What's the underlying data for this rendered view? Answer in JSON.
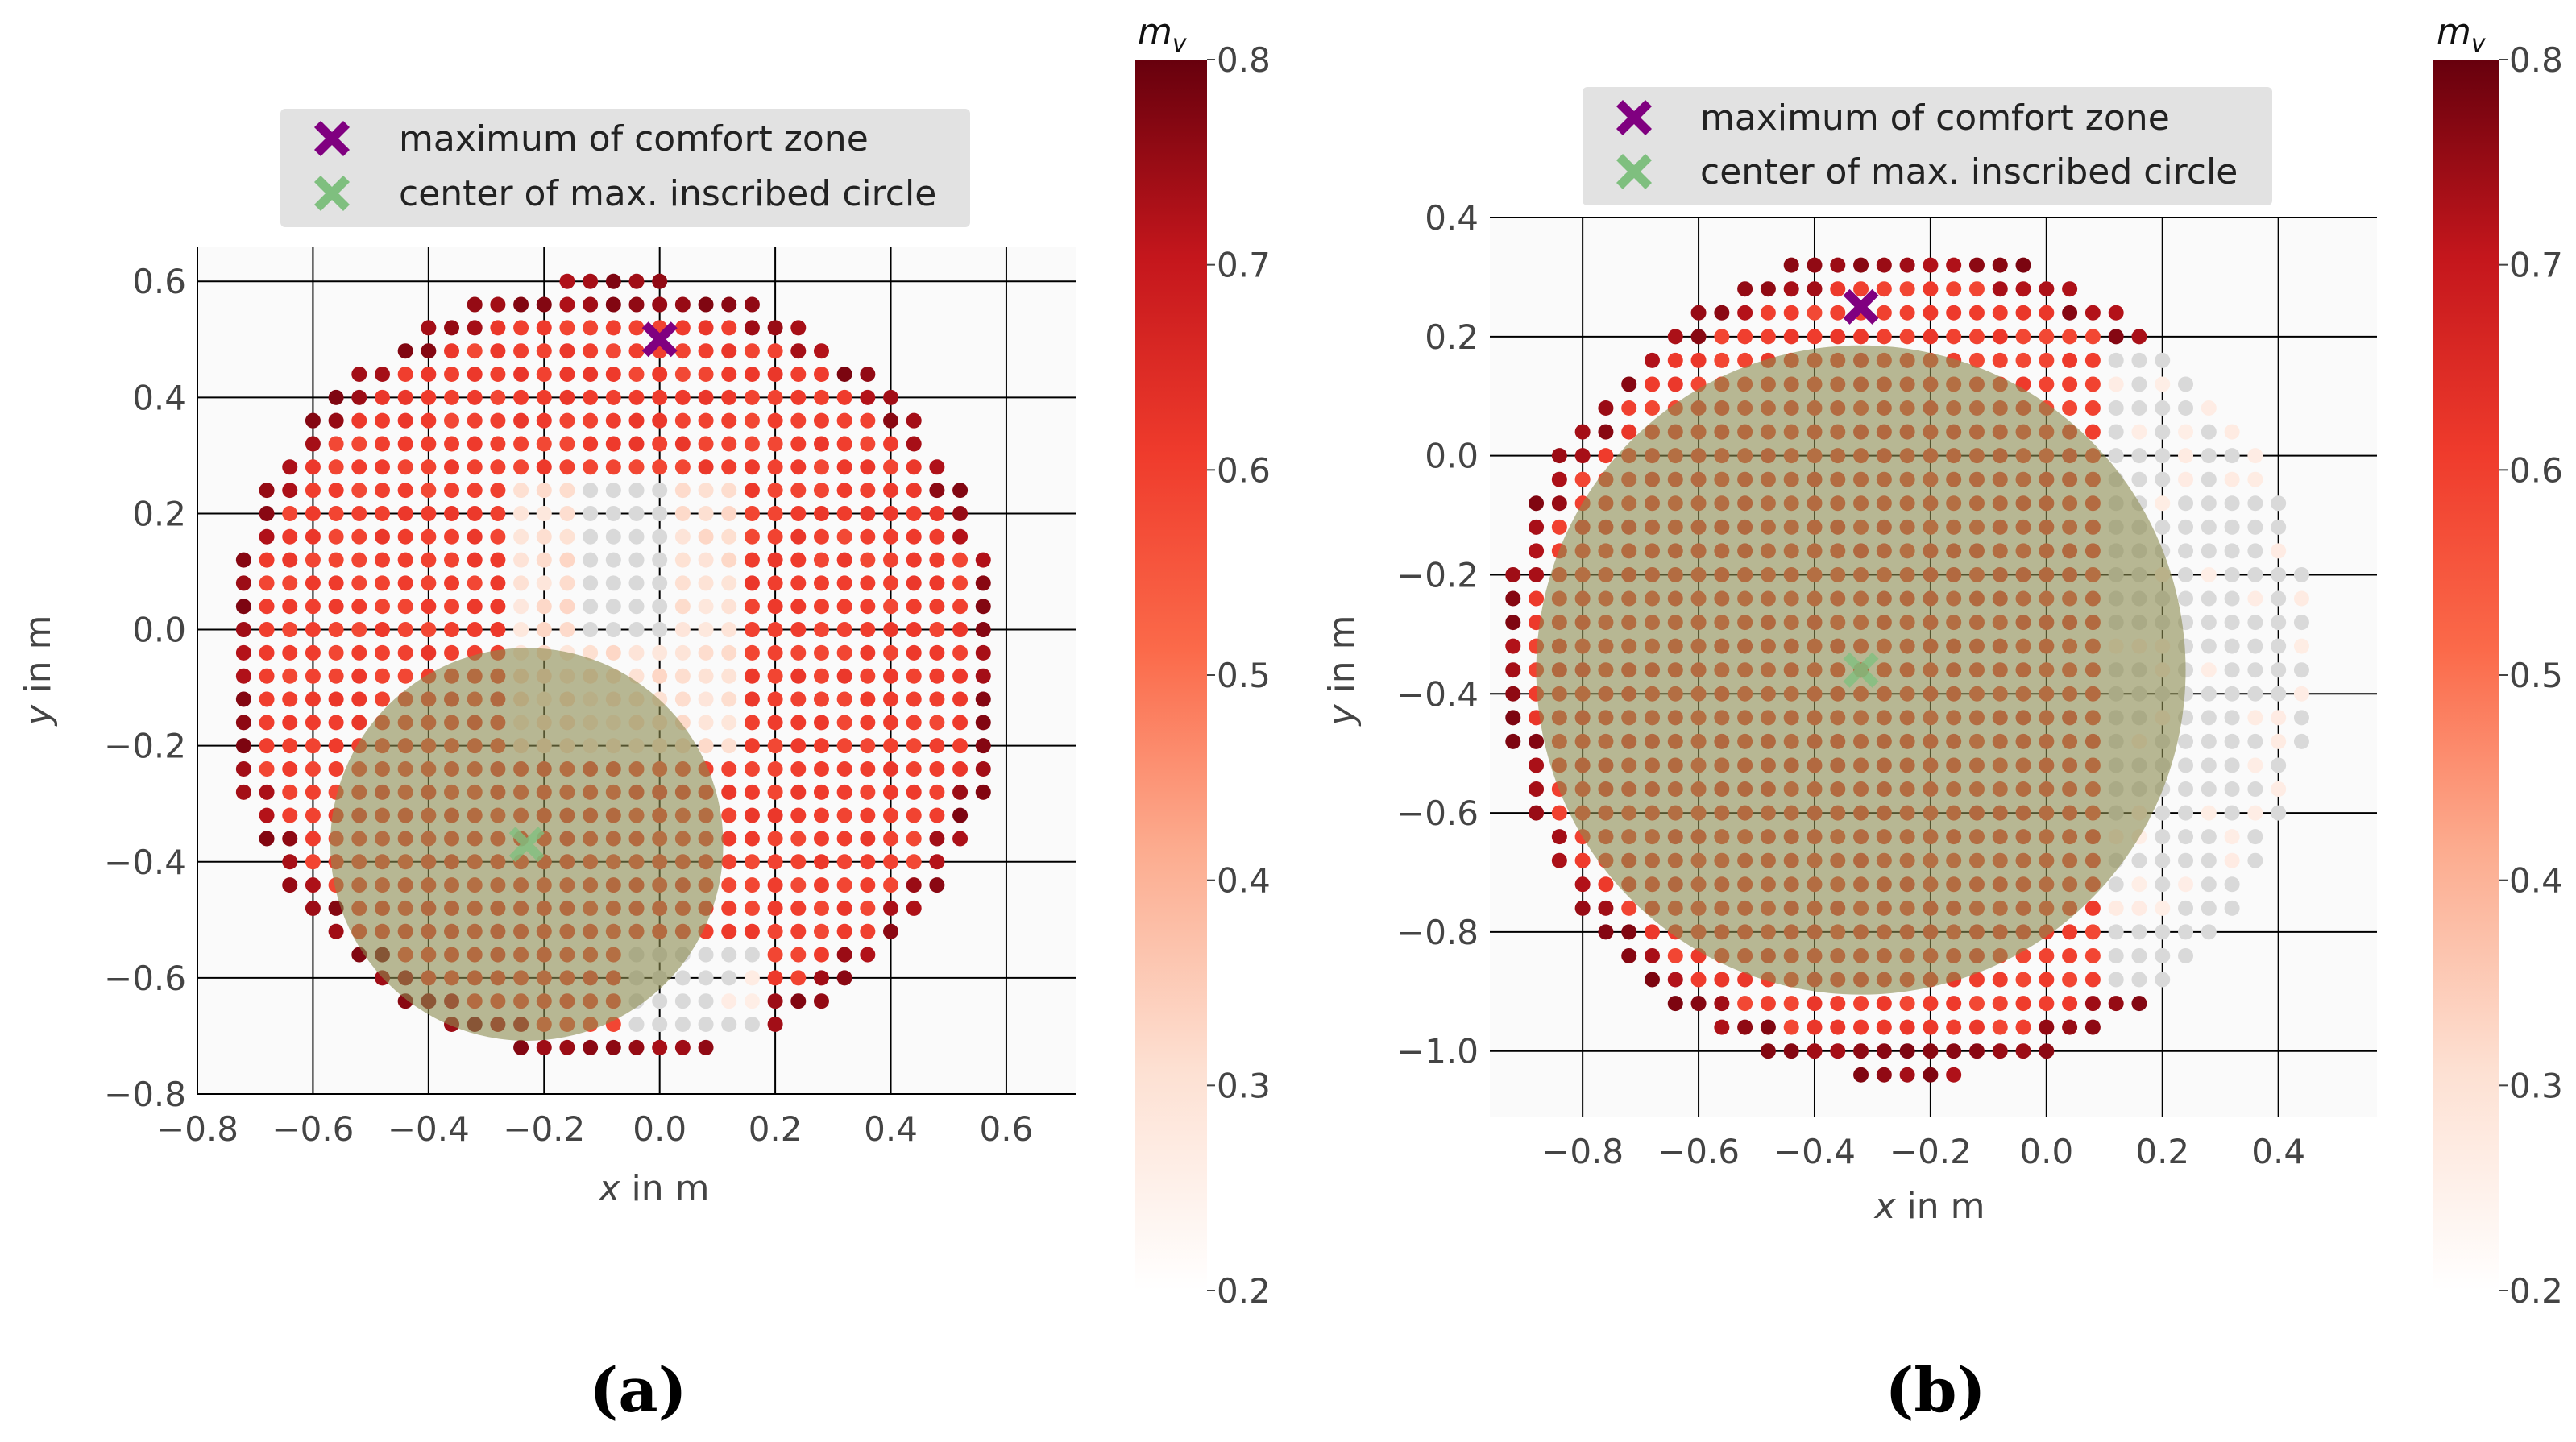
{
  "chart_data": [
    {
      "type": "scatter",
      "panel": "(a)",
      "caption": "(a)",
      "xlabel_var": "x",
      "xlabel_unit": " in m",
      "ylabel_var": "y",
      "ylabel_unit": " in m",
      "xlim": [
        -0.8,
        0.72
      ],
      "ylim": [
        -0.8,
        0.66
      ],
      "xticks": [
        -0.8,
        -0.6,
        -0.4,
        -0.2,
        0.0,
        0.2,
        0.4,
        0.6
      ],
      "xtick_labels": [
        "−0.8",
        "−0.6",
        "−0.4",
        "−0.2",
        "0.0",
        "0.2",
        "0.4",
        "0.6"
      ],
      "yticks": [
        -0.8,
        -0.6,
        -0.4,
        -0.2,
        0.0,
        0.2,
        0.4,
        0.6
      ],
      "ytick_labels": [
        "−0.8",
        "−0.6",
        "−0.4",
        "−0.2",
        "0.0",
        "0.2",
        "0.4",
        "0.6"
      ],
      "grid": true,
      "grid_step": 0.04,
      "region": {
        "center": [
          -0.08,
          -0.07
        ],
        "radius": 0.68
      },
      "comfort_maximum": [
        0.0,
        0.5
      ],
      "inscribed_circle": {
        "center": [
          -0.23,
          -0.37
        ],
        "radius": 0.34
      },
      "low_zone": [
        {
          "x": [
            -0.24,
            0.16
          ],
          "y": [
            -0.2,
            0.26
          ],
          "m_v": 0.28
        },
        {
          "x": [
            -0.12,
            0.04
          ],
          "y": [
            0.0,
            0.28
          ],
          "m_v": 0.2
        },
        {
          "x": [
            -0.04,
            0.2
          ],
          "y": [
            -0.7,
            -0.55
          ],
          "m_v": 0.22
        }
      ],
      "legend": [
        {
          "label": "maximum of comfort zone",
          "color": "#800080"
        },
        {
          "label": "center of max. inscribed circle",
          "color": "#7fbf7f"
        }
      ],
      "colorbar": {
        "label": "m",
        "subscript": "v",
        "min": 0.2,
        "max": 0.8,
        "ticks": [
          "0.2",
          "0.3",
          "0.4",
          "0.5",
          "0.6",
          "0.7",
          "0.8"
        ]
      }
    },
    {
      "type": "scatter",
      "panel": "(b)",
      "caption": "(b)",
      "xlabel_var": "x",
      "xlabel_unit": " in m",
      "ylabel_var": "y",
      "ylabel_unit": " in m",
      "xlim": [
        -0.96,
        0.57
      ],
      "ylim": [
        -1.11,
        0.4
      ],
      "xticks": [
        -0.8,
        -0.6,
        -0.4,
        -0.2,
        0.0,
        0.2,
        0.4
      ],
      "xtick_labels": [
        "−0.8",
        "−0.6",
        "−0.4",
        "−0.2",
        "0.0",
        "0.2",
        "0.4"
      ],
      "yticks": [
        -1.0,
        -0.8,
        -0.6,
        -0.4,
        -0.2,
        0.0,
        0.2,
        0.4
      ],
      "ytick_labels": [
        "−1.0",
        "−0.8",
        "−0.6",
        "−0.4",
        "−0.2",
        "0.0",
        "0.2",
        "0.4"
      ],
      "grid": true,
      "grid_step": 0.04,
      "region": {
        "center": [
          -0.24,
          -0.35
        ],
        "radius": 0.7
      },
      "comfort_maximum": [
        -0.32,
        0.25
      ],
      "inscribed_circle": {
        "center": [
          -0.32,
          -0.36
        ],
        "radius": 0.56
      },
      "low_zone": [
        {
          "x": [
            0.1,
            0.5
          ],
          "y": [
            -0.9,
            0.2
          ],
          "m_v": 0.22
        }
      ],
      "legend": [
        {
          "label": "maximum of comfort zone",
          "color": "#800080"
        },
        {
          "label": "center of max. inscribed circle",
          "color": "#7fbf7f"
        }
      ],
      "colorbar": {
        "label": "m",
        "subscript": "v",
        "min": 0.2,
        "max": 0.8,
        "ticks": [
          "0.2",
          "0.3",
          "0.4",
          "0.5",
          "0.6",
          "0.7",
          "0.8"
        ]
      }
    }
  ],
  "colors": {
    "plot_background": "#fafafa",
    "grid": "#000000",
    "circle_fill": "#8a8a4e",
    "colorscale": [
      "#ffffff",
      "#fcc3ae",
      "#fb8161",
      "#f5432f",
      "#c91a1d",
      "#6b0010"
    ]
  }
}
